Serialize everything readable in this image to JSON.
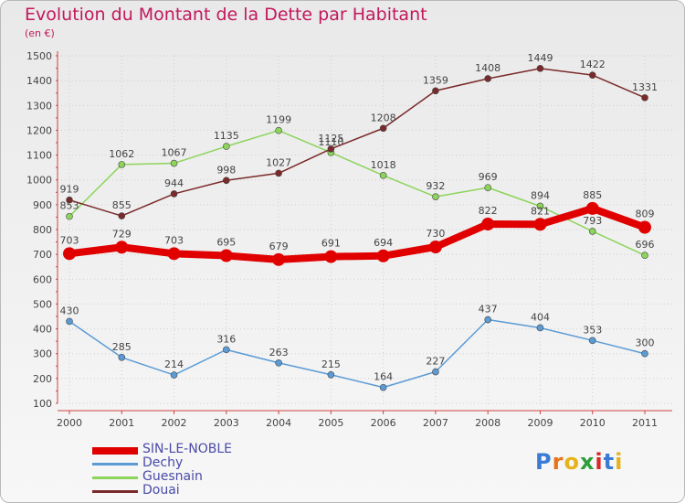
{
  "title": "Evolution du Montant de la Dette par Habitant",
  "unit": "(en €)",
  "logo": {
    "letters": [
      "P",
      "r",
      "o",
      "x",
      "i",
      "t",
      "i"
    ],
    "colors": [
      "#3a7bd5",
      "#e8731a",
      "#e8b21a",
      "#2e9e3a",
      "#d62828",
      "#3a7bd5",
      "#e8b21a"
    ]
  },
  "chart_data": {
    "type": "line",
    "title": "Evolution du Montant de la Dette par Habitant",
    "ylabel": "(en €)",
    "xlabel": "",
    "categories": [
      "2000",
      "2001",
      "2002",
      "2003",
      "2004",
      "2005",
      "2006",
      "2007",
      "2008",
      "2009",
      "2010",
      "2011"
    ],
    "ylim": [
      100,
      1500
    ],
    "yticks": [
      100,
      200,
      300,
      400,
      500,
      600,
      700,
      800,
      900,
      1000,
      1100,
      1200,
      1300,
      1400,
      1500
    ],
    "legend_position": "bottom-left",
    "series": [
      {
        "name": "SIN-LE-NOBLE",
        "color": "#e00000",
        "stroke": 8,
        "marker": 7,
        "values": [
          703,
          729,
          703,
          695,
          679,
          691,
          694,
          730,
          822,
          821,
          885,
          809
        ]
      },
      {
        "name": "Dechy",
        "color": "#5b9bd5",
        "stroke": 1.5,
        "marker": 3.5,
        "values": [
          430,
          285,
          214,
          316,
          263,
          215,
          164,
          227,
          437,
          404,
          353,
          300
        ]
      },
      {
        "name": "Guesnain",
        "color": "#8cd45a",
        "stroke": 1.5,
        "marker": 3.5,
        "values": [
          853,
          1062,
          1067,
          1135,
          1199,
          1110,
          1018,
          932,
          969,
          894,
          793,
          696
        ]
      },
      {
        "name": "Douai",
        "color": "#7a2a2a",
        "stroke": 1.5,
        "marker": 3.5,
        "values": [
          919,
          855,
          944,
          998,
          1027,
          1125,
          1208,
          1359,
          1408,
          1449,
          1422,
          1331
        ]
      }
    ]
  }
}
